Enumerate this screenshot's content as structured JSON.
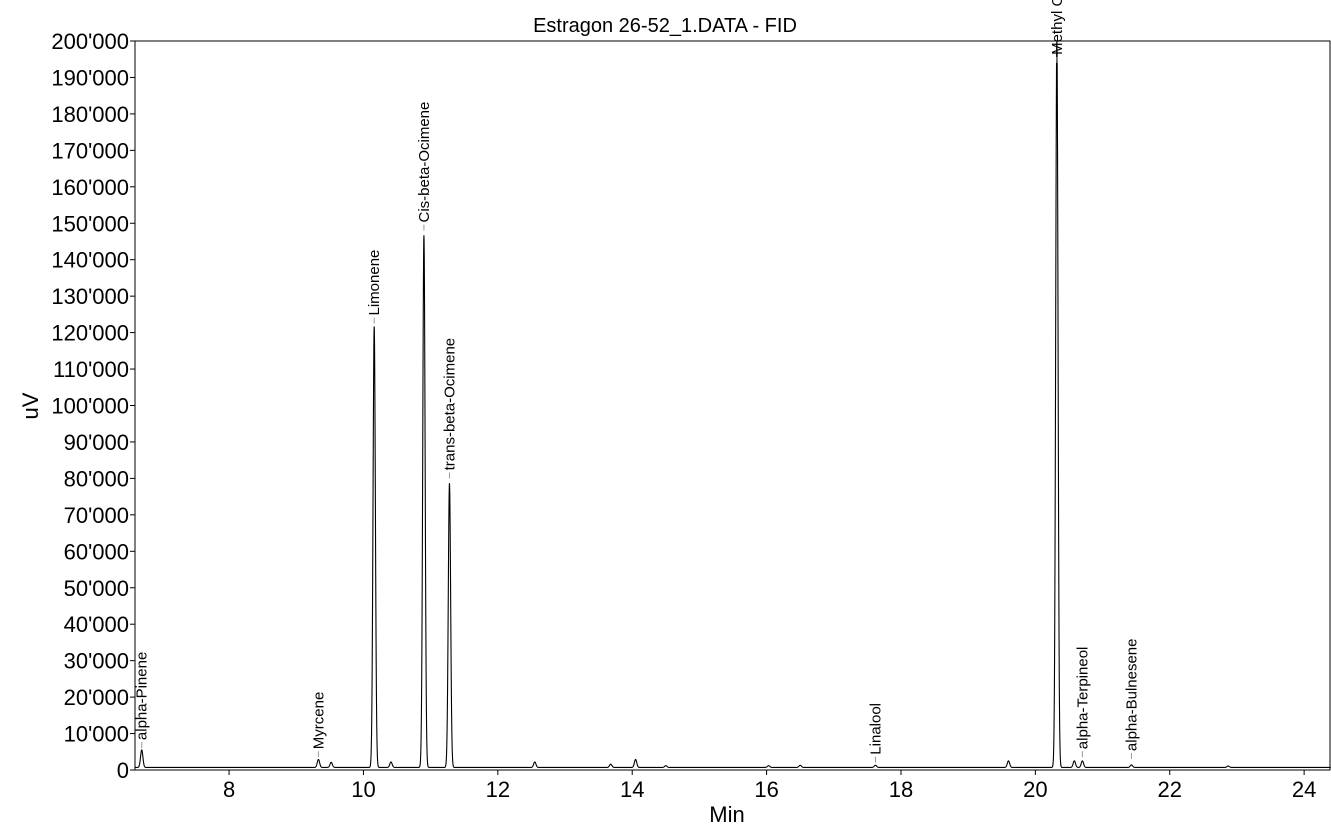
{
  "chart_data": {
    "type": "line",
    "title": "Estragon 26-52_1.DATA - FID",
    "xlabel": "Min",
    "ylabel": "uV",
    "xlim": [
      6.6,
      24.4
    ],
    "ylim": [
      0,
      200000
    ],
    "grid": false,
    "x_ticks": [
      8,
      10,
      12,
      14,
      16,
      18,
      20,
      22,
      24
    ],
    "x_tick_labels": [
      "8",
      "10",
      "12",
      "14",
      "16",
      "18",
      "20",
      "22",
      "24"
    ],
    "y_ticks": [
      0,
      10000,
      20000,
      30000,
      40000,
      50000,
      60000,
      70000,
      80000,
      90000,
      100000,
      110000,
      120000,
      130000,
      140000,
      150000,
      160000,
      170000,
      180000,
      190000,
      200000
    ],
    "y_tick_labels": [
      "0",
      "10'000",
      "20'000",
      "30'000",
      "40'000",
      "50'000",
      "60'000",
      "70'000",
      "80'000",
      "90'000",
      "100'000",
      "110'000",
      "120'000",
      "130'000",
      "140'000",
      "150'000",
      "160'000",
      "170'000",
      "180'000",
      "190'000",
      "200'000"
    ],
    "baseline": 700,
    "peaks": [
      {
        "rt": 6.7,
        "height": 4800
      },
      {
        "rt": 9.33,
        "height": 2200
      },
      {
        "rt": 9.52,
        "height": 1400
      },
      {
        "rt": 10.16,
        "height": 121000
      },
      {
        "rt": 10.41,
        "height": 1500
      },
      {
        "rt": 10.9,
        "height": 146000
      },
      {
        "rt": 11.28,
        "height": 78000
      },
      {
        "rt": 12.55,
        "height": 1500
      },
      {
        "rt": 13.68,
        "height": 900
      },
      {
        "rt": 14.05,
        "height": 2200
      },
      {
        "rt": 14.5,
        "height": 500
      },
      {
        "rt": 16.03,
        "height": 500
      },
      {
        "rt": 16.5,
        "height": 600
      },
      {
        "rt": 17.62,
        "height": 600
      },
      {
        "rt": 19.6,
        "height": 1800
      },
      {
        "rt": 20.32,
        "height": 200000
      },
      {
        "rt": 20.58,
        "height": 1800
      },
      {
        "rt": 20.7,
        "height": 1800
      },
      {
        "rt": 21.43,
        "height": 700
      },
      {
        "rt": 22.87,
        "height": 400
      }
    ],
    "annotations": [
      {
        "label": "alpha-Pinene",
        "rt": 6.7,
        "y": 6000
      },
      {
        "label": "Myrcene",
        "rt": 9.33,
        "y": 3500
      },
      {
        "label": "Limonene",
        "rt": 10.16,
        "y": 122500
      },
      {
        "label": "Cis-beta-Ocimene",
        "rt": 10.9,
        "y": 148000
      },
      {
        "label": "trans-beta-Ocimene",
        "rt": 11.28,
        "y": 80000
      },
      {
        "label": "Linalool",
        "rt": 17.62,
        "y": 2000
      },
      {
        "label": "Methyl Chavicol",
        "rt": 20.32,
        "y": 194000
      },
      {
        "label": "alpha-Terpineol",
        "rt": 20.7,
        "y": 3500
      },
      {
        "label": "alpha-Bulnesene",
        "rt": 21.43,
        "y": 3000
      }
    ]
  }
}
